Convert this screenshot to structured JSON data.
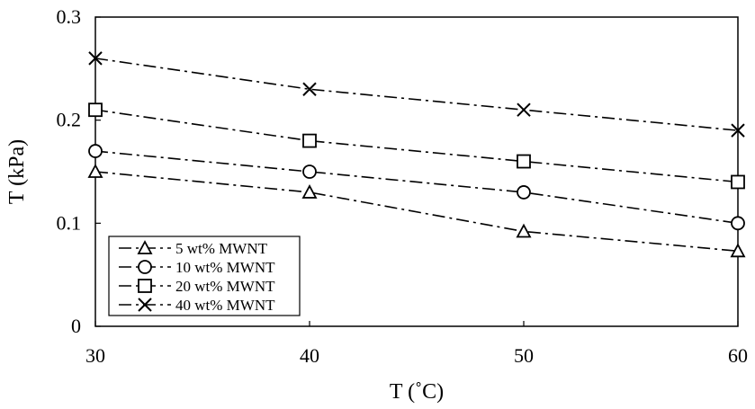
{
  "chart_data": {
    "type": "line",
    "title": "",
    "xlabel": "T (˚C)",
    "ylabel": "T (kPa)",
    "x": [
      30,
      40,
      50,
      60
    ],
    "xlim": [
      30,
      60
    ],
    "ylim": [
      0,
      0.3
    ],
    "x_ticks": [
      "30",
      "40",
      "50",
      "60"
    ],
    "y_ticks": [
      "0",
      "0.1",
      "0.2",
      "0.3"
    ],
    "grid": false,
    "legend_position": "bottom-left",
    "series": [
      {
        "name": "5 wt% MWNT",
        "marker": "triangle",
        "values": [
          0.15,
          0.13,
          0.092,
          0.073
        ]
      },
      {
        "name": "10 wt% MWNT",
        "marker": "circle",
        "values": [
          0.17,
          0.15,
          0.13,
          0.1
        ]
      },
      {
        "name": "20 wt% MWNT",
        "marker": "square",
        "values": [
          0.21,
          0.18,
          0.16,
          0.14
        ]
      },
      {
        "name": "40 wt% MWNT",
        "marker": "x",
        "values": [
          0.26,
          0.23,
          0.21,
          0.19
        ]
      }
    ],
    "colors": {
      "line": "#000000",
      "background": "#ffffff"
    }
  }
}
